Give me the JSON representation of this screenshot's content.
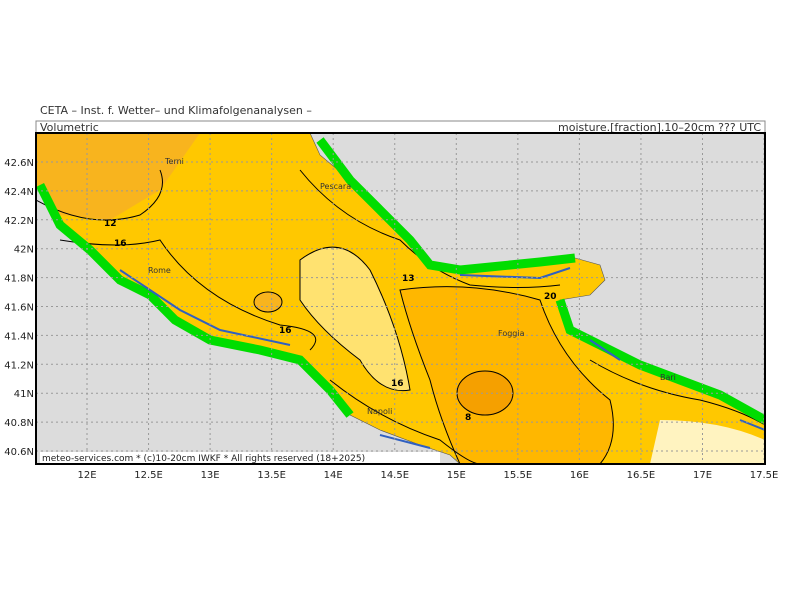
{
  "header": {
    "institute": "CETA – Inst. f. Wetter– und Klimafolgenanalysen –",
    "left_label": "Volumetric",
    "right_label": "moisture.[fraction].10–20cm ??? UTC"
  },
  "map": {
    "lat_ticks": [
      {
        "value": 42.6,
        "label": "42.6N"
      },
      {
        "value": 42.4,
        "label": "42.4N"
      },
      {
        "value": 42.2,
        "label": "42.2N"
      },
      {
        "value": 42,
        "label": "42N"
      },
      {
        "value": 41.8,
        "label": "41.8N"
      },
      {
        "value": 41.6,
        "label": "41.6N"
      },
      {
        "value": 41.4,
        "label": "41.4N"
      },
      {
        "value": 41.2,
        "label": "41.2N"
      },
      {
        "value": 41,
        "label": "41N"
      },
      {
        "value": 40.8,
        "label": "40.8N"
      },
      {
        "value": 40.6,
        "label": "40.6N"
      }
    ],
    "lon_ticks": [
      {
        "value": 12,
        "label": "12E"
      },
      {
        "value": 12.5,
        "label": "12.5E"
      },
      {
        "value": 13,
        "label": "13E"
      },
      {
        "value": 13.5,
        "label": "13.5E"
      },
      {
        "value": 14,
        "label": "14E"
      },
      {
        "value": 14.5,
        "label": "14.5E"
      },
      {
        "value": 15,
        "label": "15E"
      },
      {
        "value": 15.5,
        "label": "15.5E"
      },
      {
        "value": 16,
        "label": "16E"
      },
      {
        "value": 16.5,
        "label": "16.5E"
      },
      {
        "value": 17,
        "label": "17E"
      },
      {
        "value": 17.5,
        "label": "17.5E"
      }
    ],
    "cities": [
      "Terni",
      "Pescara",
      "Rome",
      "Foggia",
      "Napoli",
      "Bari"
    ],
    "contour_labels": [
      "12",
      "16",
      "13",
      "20",
      "16",
      "16",
      "8"
    ]
  },
  "footer": "meteo-services.com * (c)10-20cm IWKF * All rights reserved (18+2025)"
}
